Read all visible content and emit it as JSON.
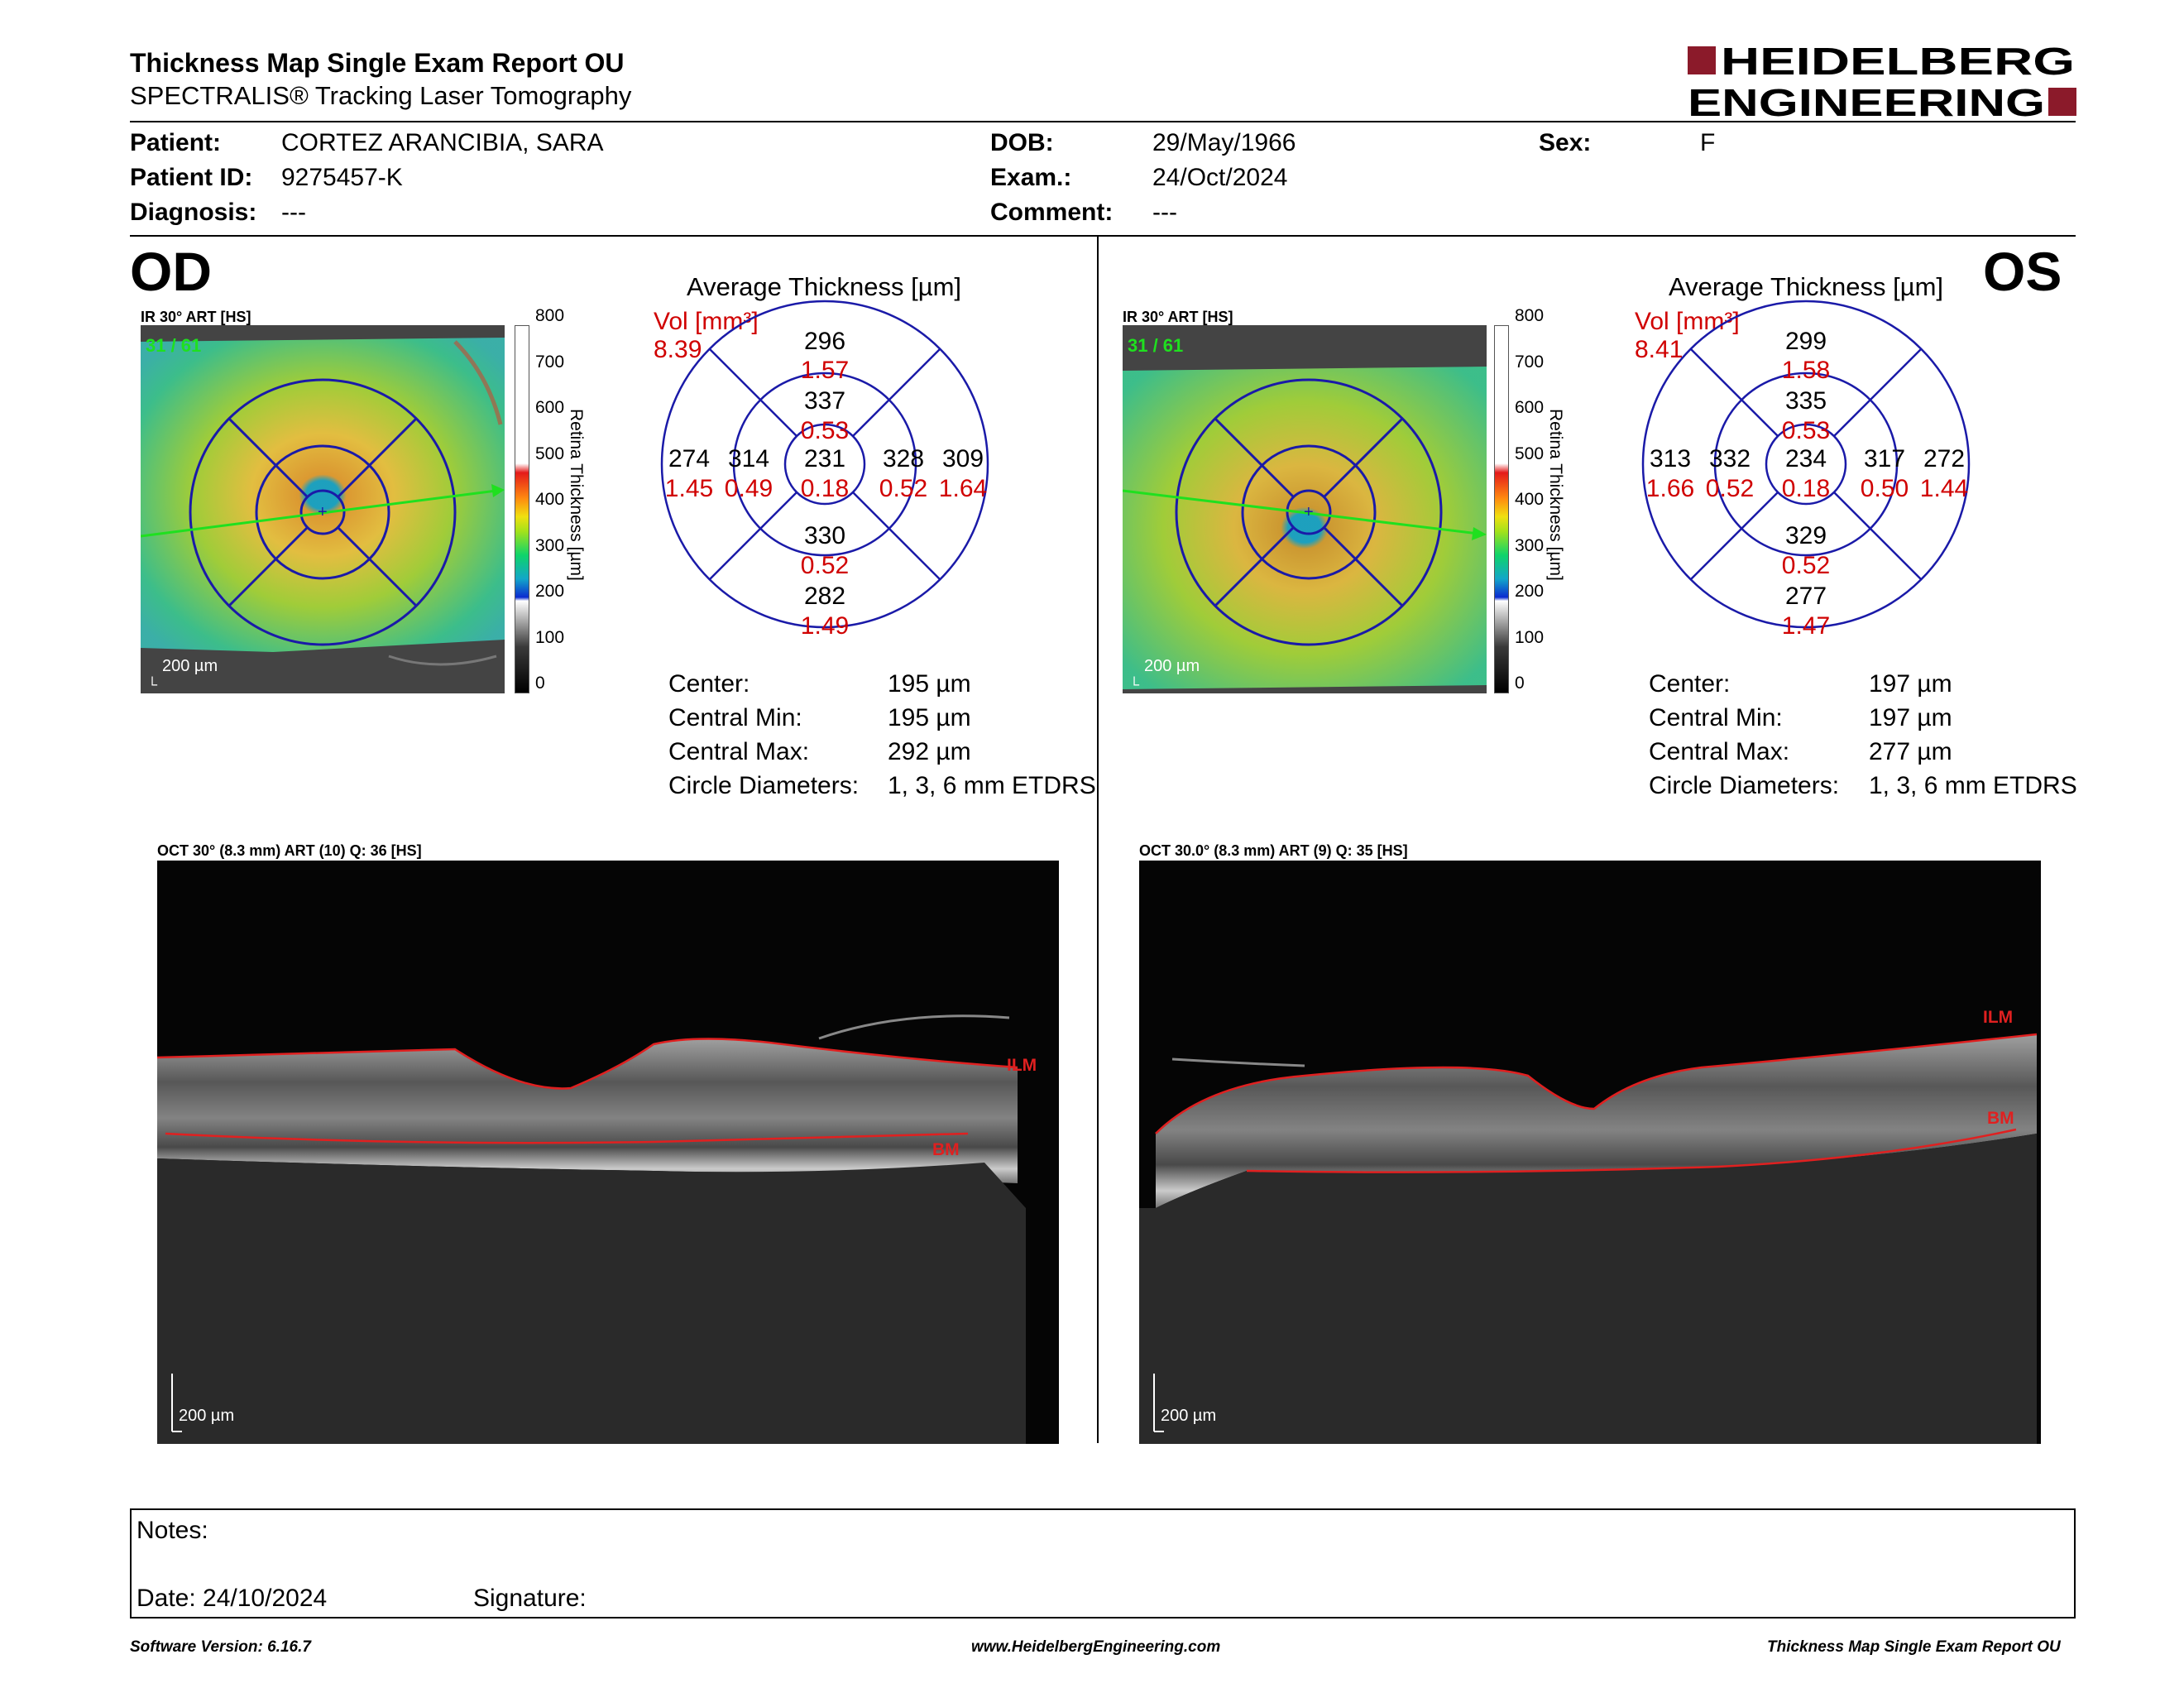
{
  "header": {
    "title": "Thickness Map Single Exam Report OU",
    "subtitle": "SPECTRALIS® Tracking Laser Tomography",
    "logo_line1": "HEIDELBERG",
    "logo_line2": "ENGINEERING"
  },
  "patient": {
    "patient_label": "Patient:",
    "patient_value": "CORTEZ ARANCIBIA, SARA",
    "id_label": "Patient ID:",
    "id_value": "9275457-K",
    "diag_label": "Diagnosis:",
    "diag_value": "---",
    "dob_label": "DOB:",
    "dob_value": "29/May/1966",
    "exam_label": "Exam.:",
    "exam_value": "24/Oct/2024",
    "comment_label": "Comment:",
    "comment_value": "---",
    "sex_label": "Sex:",
    "sex_value": "F"
  },
  "scale": {
    "labels": [
      "800",
      "700",
      "600",
      "500",
      "400",
      "300",
      "200",
      "100",
      "0"
    ],
    "title": "Retina Thickness [µm]"
  },
  "od": {
    "eye": "OD",
    "ir_label": "IR 30° ART [HS]",
    "frame": "31 / 61",
    "ir_scale": "200 µm",
    "avg_title": "Average Thickness [µm]",
    "vol_label": "Vol [mm³]",
    "vol_value": "8.39",
    "grid": {
      "top_o": "296",
      "top_o_v": "1.57",
      "top_i": "337",
      "top_i_v": "0.53",
      "c": "231",
      "c_v": "0.18",
      "left_o": "274",
      "left_o_v": "1.45",
      "left_i": "314",
      "left_i_v": "0.49",
      "right_i": "328",
      "right_i_v": "0.52",
      "right_o": "309",
      "right_o_v": "1.64",
      "bot_i": "330",
      "bot_i_v": "0.52",
      "bot_o": "282",
      "bot_o_v": "1.49"
    },
    "stats": {
      "center_l": "Center:",
      "center_v": "195 µm",
      "min_l": "Central Min:",
      "min_v": "195 µm",
      "max_l": "Central Max:",
      "max_v": "292 µm",
      "diam_l": "Circle Diameters:",
      "diam_v": "1, 3, 6 mm ETDRS"
    },
    "oct_label": "OCT 30° (8.3 mm) ART (10) Q: 36 [HS]",
    "oct_scale": "200 µm",
    "ilm": "ILM",
    "bm": "BM"
  },
  "os": {
    "eye": "OS",
    "ir_label": "IR 30° ART [HS]",
    "frame": "31 / 61",
    "ir_scale": "200 µm",
    "avg_title": "Average Thickness [µm]",
    "vol_label": "Vol [mm³]",
    "vol_value": "8.41",
    "grid": {
      "top_o": "299",
      "top_o_v": "1.58",
      "top_i": "335",
      "top_i_v": "0.53",
      "c": "234",
      "c_v": "0.18",
      "left_o": "313",
      "left_o_v": "1.66",
      "left_i": "332",
      "left_i_v": "0.52",
      "right_i": "317",
      "right_i_v": "0.50",
      "right_o": "272",
      "right_o_v": "1.44",
      "bot_i": "329",
      "bot_i_v": "0.52",
      "bot_o": "277",
      "bot_o_v": "1.47"
    },
    "stats": {
      "center_l": "Center:",
      "center_v": "197 µm",
      "min_l": "Central Min:",
      "min_v": "197 µm",
      "max_l": "Central Max:",
      "max_v": "277 µm",
      "diam_l": "Circle Diameters:",
      "diam_v": "1, 3, 6 mm ETDRS"
    },
    "oct_label": "OCT 30.0° (8.3 mm) ART (9) Q: 35 [HS]",
    "oct_scale": "200 µm",
    "ilm": "ILM",
    "bm": "BM"
  },
  "notes": {
    "notes_label": "Notes:",
    "date_label": "Date: 24/10/2024",
    "sig_label": "Signature:"
  },
  "footer": {
    "version": "Software Version: 6.16.7",
    "url": "www.HeidelbergEngineering.com",
    "report": "Thickness Map Single Exam Report OU"
  },
  "colors": {
    "brand_red": "#8b1a2a",
    "grid_blue": "#1a1aa8",
    "value_red": "#d00000",
    "scan_green": "#1fe01f"
  }
}
